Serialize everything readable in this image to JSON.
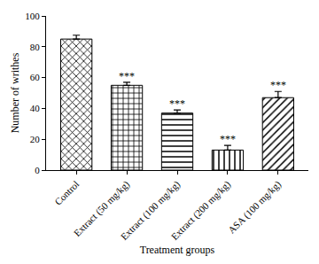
{
  "chart_data": {
    "type": "bar",
    "categories": [
      "Control",
      "Extract (50 mg/kg)",
      "Extract (100 mg/kg)",
      "Extract (200 mg/kg)",
      "ASA (100 mg/kg)"
    ],
    "values": [
      85,
      55,
      37,
      13,
      47
    ],
    "errors": [
      2.5,
      2,
      2,
      3,
      4
    ],
    "significance": [
      null,
      "***",
      "***",
      "***",
      "***"
    ],
    "x_label": "Treatment groups",
    "y_label": "Number of writhes",
    "color": "#000000",
    "ylim": [
      0,
      100
    ],
    "yticks": [
      0,
      20,
      40,
      60,
      80,
      100
    ],
    "grid": false
  }
}
